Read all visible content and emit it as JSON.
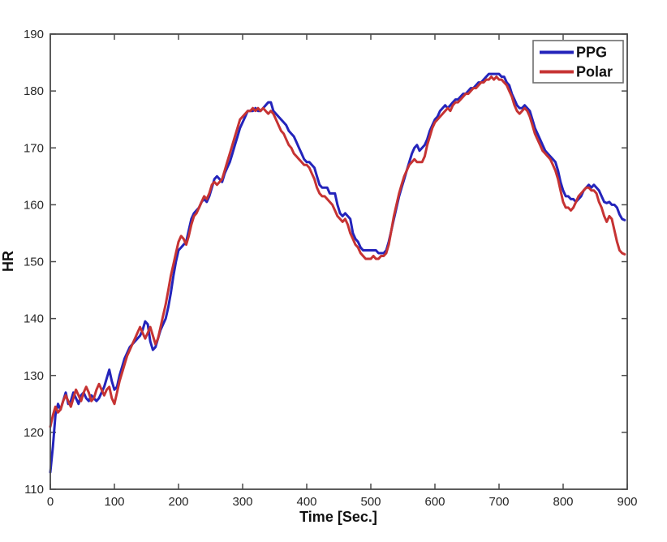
{
  "figure": {
    "background": "#ffffff",
    "axis_color": "#4a4a4a",
    "tick_text_color": "#262626"
  },
  "chart_data": {
    "type": "line",
    "title": "",
    "xlabel": "Time [Sec.]",
    "ylabel": "HR",
    "xlim": [
      0,
      900
    ],
    "ylim": [
      110,
      190
    ],
    "xticks": [
      0,
      100,
      200,
      300,
      400,
      500,
      600,
      700,
      800,
      900
    ],
    "yticks": [
      110,
      120,
      130,
      140,
      150,
      160,
      170,
      180,
      190
    ],
    "grid": false,
    "legend_position": "top-right",
    "x": [
      0,
      4,
      8,
      12,
      16,
      20,
      24,
      28,
      32,
      36,
      40,
      44,
      48,
      52,
      56,
      60,
      64,
      68,
      72,
      76,
      80,
      84,
      88,
      92,
      96,
      100,
      104,
      108,
      112,
      116,
      120,
      124,
      128,
      132,
      136,
      140,
      144,
      148,
      152,
      156,
      160,
      164,
      168,
      172,
      176,
      180,
      184,
      188,
      192,
      196,
      200,
      204,
      208,
      212,
      216,
      220,
      224,
      228,
      232,
      236,
      240,
      244,
      248,
      252,
      256,
      260,
      264,
      268,
      272,
      276,
      280,
      284,
      288,
      292,
      296,
      300,
      304,
      308,
      312,
      316,
      320,
      324,
      328,
      332,
      336,
      340,
      344,
      348,
      352,
      356,
      360,
      364,
      368,
      372,
      376,
      380,
      384,
      388,
      392,
      396,
      400,
      404,
      408,
      412,
      416,
      420,
      424,
      428,
      432,
      436,
      440,
      444,
      448,
      452,
      456,
      460,
      464,
      468,
      472,
      476,
      480,
      484,
      488,
      492,
      496,
      500,
      504,
      508,
      512,
      516,
      520,
      524,
      528,
      532,
      536,
      540,
      544,
      548,
      552,
      556,
      560,
      564,
      568,
      572,
      576,
      580,
      584,
      588,
      592,
      596,
      600,
      604,
      608,
      612,
      616,
      620,
      624,
      628,
      632,
      636,
      640,
      644,
      648,
      652,
      656,
      660,
      664,
      668,
      672,
      676,
      680,
      684,
      688,
      692,
      696,
      700,
      704,
      708,
      712,
      716,
      720,
      724,
      728,
      732,
      736,
      740,
      744,
      748,
      752,
      756,
      760,
      764,
      768,
      772,
      776,
      780,
      784,
      788,
      792,
      796,
      800,
      804,
      808,
      812,
      816,
      820,
      824,
      828,
      832,
      836,
      840,
      844,
      848,
      852,
      856,
      860,
      864,
      868,
      872,
      876,
      880,
      884,
      888,
      892,
      896
    ],
    "series": [
      {
        "name": "PPG",
        "color": "#2424bb",
        "values": [
          113,
          117.5,
          123,
          125,
          124,
          125.5,
          127,
          125,
          125.5,
          127,
          126,
          125,
          126.5,
          127,
          126,
          125.5,
          126.5,
          126,
          125.5,
          126,
          127,
          128,
          129.5,
          131,
          129,
          127.5,
          128,
          130,
          131.5,
          133,
          134,
          135,
          135.5,
          136,
          136.5,
          137,
          138,
          139.5,
          139,
          136,
          134.5,
          135,
          136.5,
          138,
          139,
          140,
          142,
          144.5,
          147.5,
          150,
          152,
          152.5,
          153,
          153.5,
          155.5,
          157.5,
          158.5,
          159,
          159.5,
          160.5,
          161,
          160.5,
          161.5,
          163,
          164.5,
          165,
          164.5,
          164,
          165.5,
          166.5,
          167.5,
          169,
          170.5,
          172,
          173.5,
          174.5,
          175.5,
          176.5,
          176.5,
          176.5,
          177,
          176.5,
          176.5,
          177,
          177.5,
          178,
          178,
          176.5,
          176,
          175.5,
          175,
          174.5,
          174,
          173,
          172.5,
          172,
          171,
          170,
          169,
          168,
          167.5,
          167.5,
          167,
          166.5,
          165,
          163.5,
          163,
          163,
          163,
          162,
          162,
          162,
          160,
          158.5,
          158,
          158.5,
          158,
          157.5,
          155,
          154,
          153.5,
          152.5,
          152,
          152,
          152,
          152,
          152,
          152,
          151.5,
          151.5,
          151.5,
          152,
          153.5,
          155.5,
          157.5,
          159.5,
          161.5,
          163,
          164.5,
          166,
          167.5,
          169,
          170,
          170.5,
          169.5,
          170,
          170.5,
          171.5,
          173,
          174,
          175,
          175.5,
          176.5,
          177,
          177.5,
          177,
          177.5,
          178,
          178.5,
          178.5,
          179,
          179.5,
          179.5,
          180,
          180.5,
          180.5,
          181,
          181.5,
          181.5,
          182,
          182.5,
          183,
          183,
          183,
          183,
          183,
          182.5,
          182.5,
          181.5,
          181,
          179.5,
          178.5,
          177.5,
          177,
          177,
          177.5,
          177,
          176.5,
          175,
          173.5,
          172.5,
          171.5,
          170.5,
          169.5,
          169,
          168.5,
          168,
          167.5,
          166,
          164,
          162.5,
          161.5,
          161.5,
          161,
          161,
          160.5,
          161,
          161.5,
          162.5,
          163,
          163.5,
          163,
          163.5,
          163,
          162.5,
          161.5,
          160.5,
          160.3,
          160.5,
          160,
          160,
          159.5,
          158.3,
          157.5,
          157.3
        ]
      },
      {
        "name": "Polar",
        "color": "#c63333",
        "values": [
          121,
          123,
          124.5,
          123.5,
          124,
          125.5,
          126.5,
          125.5,
          124.5,
          126,
          127.5,
          126.5,
          125.5,
          127,
          128,
          127,
          125.5,
          126,
          127.5,
          128.5,
          127.5,
          126.5,
          127.5,
          128,
          126,
          125,
          127,
          129,
          130.5,
          132,
          133.5,
          134.5,
          135.5,
          136.5,
          137.5,
          138.5,
          137.5,
          136.5,
          137.5,
          138.5,
          137,
          135.5,
          136.5,
          138.5,
          140.5,
          142.5,
          145,
          147.5,
          149.5,
          151.5,
          153.5,
          154.5,
          154,
          153,
          154.5,
          156.5,
          158,
          158.5,
          159.5,
          160.5,
          161.5,
          161,
          162,
          163.5,
          164,
          163.5,
          164,
          164.5,
          166,
          167.5,
          169,
          170.5,
          172,
          173.5,
          175,
          175.5,
          176,
          176.5,
          176.5,
          177,
          176.5,
          177,
          176.5,
          177,
          176.5,
          176,
          176.5,
          176,
          175,
          174,
          173,
          172.5,
          171.5,
          170.5,
          170,
          169,
          168.5,
          168,
          167.5,
          167,
          167,
          166.5,
          165.5,
          164.5,
          163,
          162,
          161.5,
          161.5,
          161,
          160.5,
          160,
          159,
          158,
          157.5,
          157,
          157.5,
          156.5,
          155,
          154,
          153,
          152.5,
          151.5,
          151,
          150.5,
          150.5,
          150.5,
          151,
          150.5,
          150.5,
          151,
          151,
          151.5,
          153,
          155.5,
          158,
          160,
          162,
          163.5,
          165,
          166,
          167,
          167.5,
          168,
          167.5,
          167.5,
          167.5,
          168.5,
          170.5,
          172,
          173.5,
          174.5,
          175,
          175.5,
          176,
          176.5,
          177,
          176.5,
          177.5,
          178,
          178,
          178.5,
          179,
          179.5,
          179.5,
          180,
          180.5,
          180.5,
          181,
          181.5,
          181.5,
          182,
          182,
          182.5,
          182,
          182.5,
          182,
          182,
          181.5,
          181,
          180,
          179,
          177.5,
          176.5,
          176,
          176.5,
          177,
          176.5,
          175.5,
          174,
          172.5,
          171.5,
          170.5,
          169.5,
          169,
          168.5,
          168,
          167,
          166,
          164.5,
          162.5,
          160.5,
          159.5,
          159.5,
          159,
          159.5,
          160.5,
          161.5,
          162,
          162.5,
          163,
          163,
          162.5,
          162.5,
          162,
          160.5,
          159.5,
          158,
          157,
          158,
          157.5,
          155.5,
          153.5,
          152,
          151.5,
          151.3
        ]
      }
    ]
  },
  "legend": {
    "entries": [
      {
        "label": "PPG"
      },
      {
        "label": "Polar"
      }
    ]
  }
}
